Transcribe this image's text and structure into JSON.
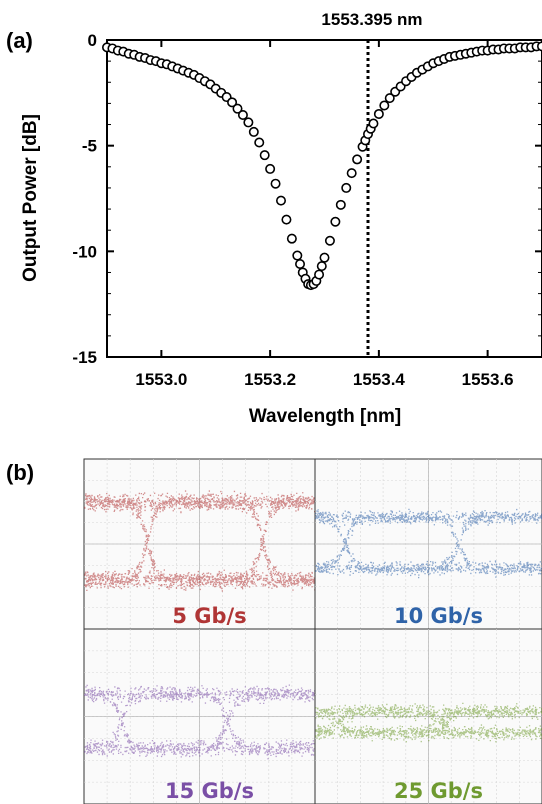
{
  "panel_a_label": "(a)",
  "panel_b_label": "(b)",
  "marker_label": "1553.395 nm",
  "chart_data": {
    "type": "scatter",
    "title": "",
    "xlabel": "Wavelength [nm]",
    "ylabel": "Output Power [dB]",
    "xlim": [
      1552.9,
      1553.7
    ],
    "ylim": [
      -15,
      0
    ],
    "xticks": [
      {
        "value": 1553.0,
        "label": "1553.0"
      },
      {
        "value": 1553.2,
        "label": "1553.2"
      },
      {
        "value": 1553.4,
        "label": "1553.4"
      },
      {
        "value": 1553.6,
        "label": "1553.6"
      }
    ],
    "yticks": [
      {
        "value": 0,
        "label": "0"
      },
      {
        "value": -5,
        "label": "-5"
      },
      {
        "value": -10,
        "label": "-10"
      },
      {
        "value": -15,
        "label": "-15"
      }
    ],
    "vline": {
      "x": 1553.38,
      "style": "dotted"
    },
    "marker_style": "open-circle",
    "series": [
      {
        "x": [
          1552.9,
          1552.91,
          1552.92,
          1552.93,
          1552.94,
          1552.95,
          1552.96,
          1552.97,
          1552.98,
          1552.99,
          1553.0,
          1553.01,
          1553.02,
          1553.03,
          1553.04,
          1553.05,
          1553.06,
          1553.07,
          1553.08,
          1553.09,
          1553.1,
          1553.11,
          1553.12,
          1553.13,
          1553.14,
          1553.15,
          1553.16,
          1553.17,
          1553.18,
          1553.19,
          1553.2,
          1553.21,
          1553.22,
          1553.23,
          1553.24,
          1553.25,
          1553.255,
          1553.26,
          1553.265,
          1553.27,
          1553.275,
          1553.28,
          1553.285,
          1553.29,
          1553.295,
          1553.3,
          1553.31,
          1553.32,
          1553.33,
          1553.34,
          1553.35,
          1553.36,
          1553.37,
          1553.375,
          1553.38,
          1553.385,
          1553.39,
          1553.4,
          1553.41,
          1553.42,
          1553.43,
          1553.44,
          1553.45,
          1553.46,
          1553.47,
          1553.48,
          1553.49,
          1553.5,
          1553.51,
          1553.52,
          1553.53,
          1553.54,
          1553.55,
          1553.56,
          1553.57,
          1553.58,
          1553.59,
          1553.6,
          1553.61,
          1553.62,
          1553.63,
          1553.64,
          1553.65,
          1553.66,
          1553.67,
          1553.68,
          1553.69,
          1553.7
        ],
        "y": [
          -0.35,
          -0.4,
          -0.5,
          -0.55,
          -0.65,
          -0.7,
          -0.8,
          -0.85,
          -0.95,
          -1.0,
          -1.1,
          -1.15,
          -1.25,
          -1.35,
          -1.45,
          -1.55,
          -1.65,
          -1.8,
          -1.95,
          -2.1,
          -2.3,
          -2.5,
          -2.7,
          -2.95,
          -3.25,
          -3.55,
          -3.9,
          -4.35,
          -4.85,
          -5.45,
          -6.1,
          -6.8,
          -7.6,
          -8.5,
          -9.4,
          -10.2,
          -10.6,
          -11.0,
          -11.3,
          -11.55,
          -11.6,
          -11.55,
          -11.4,
          -11.1,
          -10.7,
          -10.3,
          -9.5,
          -8.6,
          -7.8,
          -7.0,
          -6.3,
          -5.65,
          -5.05,
          -4.75,
          -4.45,
          -4.2,
          -3.95,
          -3.5,
          -3.1,
          -2.75,
          -2.45,
          -2.2,
          -1.95,
          -1.75,
          -1.55,
          -1.4,
          -1.25,
          -1.1,
          -1.0,
          -0.9,
          -0.8,
          -0.75,
          -0.7,
          -0.65,
          -0.6,
          -0.55,
          -0.5,
          -0.5,
          -0.45,
          -0.45,
          -0.4,
          -0.4,
          -0.4,
          -0.35,
          -0.35,
          -0.35,
          -0.3,
          -0.3
        ]
      }
    ]
  },
  "eye_diagrams": [
    {
      "label": "5 Gb/s",
      "color": "#b03535",
      "pattern": "nrz-5"
    },
    {
      "label": "10 Gb/s",
      "color": "#2f63a8",
      "pattern": "nrz-10"
    },
    {
      "label": "15 Gb/s",
      "color": "#7a4fa6",
      "pattern": "nrz-15"
    },
    {
      "label": "25 Gb/s",
      "color": "#6f9a30",
      "pattern": "nrz-25"
    }
  ]
}
